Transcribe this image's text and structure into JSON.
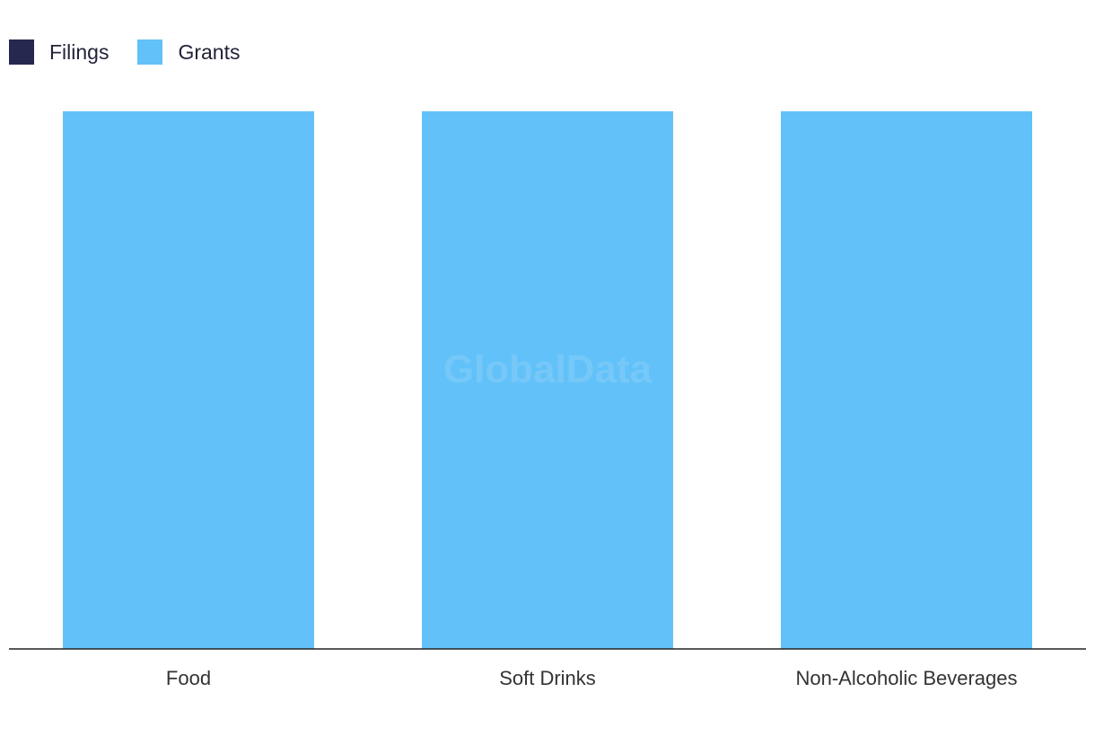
{
  "chart_data": {
    "type": "bar",
    "stacked": true,
    "categories": [
      "Food",
      "Soft Drinks",
      "Non-Alcoholic Beverages"
    ],
    "series": [
      {
        "name": "Filings",
        "values": [
          0,
          0,
          0
        ],
        "color": "#262850"
      },
      {
        "name": "Grants",
        "values": [
          1,
          1,
          1
        ],
        "color": "#62c1f8"
      }
    ],
    "ylim": [
      0,
      1
    ],
    "grid": false,
    "legend": "top-left",
    "title": "",
    "xlabel": "",
    "ylabel": ""
  },
  "watermark": "GlobalData"
}
